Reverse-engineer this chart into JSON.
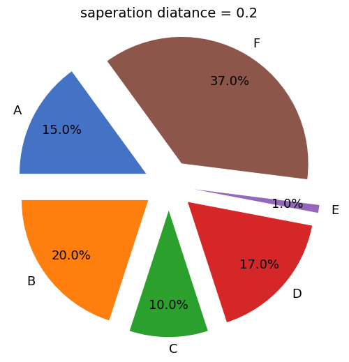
{
  "title": "saperation diatance = 0.2",
  "labels": [
    "A",
    "B",
    "C",
    "D",
    "E",
    "F"
  ],
  "sizes": [
    15,
    20,
    10,
    17,
    1,
    37
  ],
  "colors": [
    "#4472c4",
    "#ff7f0e",
    "#2ca02c",
    "#d62728",
    "#9467bd",
    "#8c564b"
  ],
  "explode": [
    0.2,
    0.2,
    0.2,
    0.2,
    0.2,
    0.2
  ],
  "startangle": 126,
  "title_fontsize": 14,
  "label_fontsize": 13,
  "autopct_fontsize": 13
}
